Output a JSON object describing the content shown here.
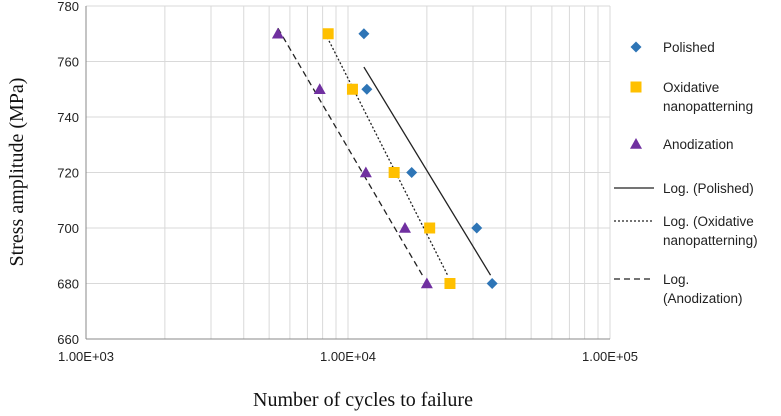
{
  "chart_data": {
    "type": "scatter",
    "title": "",
    "xlabel": "Number of cycles to failure",
    "ylabel": "Stress amplitude (MPa)",
    "x_scale": "log",
    "xlim": [
      1000,
      100000
    ],
    "ylim": [
      660,
      780
    ],
    "x_ticks": [
      1000,
      10000,
      100000
    ],
    "x_tick_labels": [
      "1.00E+03",
      "1.00E+04",
      "1.00E+05"
    ],
    "y_ticks": [
      660,
      680,
      700,
      720,
      740,
      760,
      780
    ],
    "y_tick_labels": [
      "660",
      "680",
      "700",
      "720",
      "740",
      "760",
      "780"
    ],
    "grid": true,
    "legend_position": "right",
    "series": [
      {
        "name": "Polished",
        "marker": "diamond",
        "color": "#2E75B6",
        "points": [
          {
            "x": 11500,
            "y": 770
          },
          {
            "x": 11800,
            "y": 750
          },
          {
            "x": 17500,
            "y": 720
          },
          {
            "x": 31000,
            "y": 700
          },
          {
            "x": 35500,
            "y": 680
          }
        ]
      },
      {
        "name": "Oxidative nanopatterning",
        "marker": "square",
        "color": "#FFC000",
        "points": [
          {
            "x": 8400,
            "y": 770
          },
          {
            "x": 10400,
            "y": 750
          },
          {
            "x": 15000,
            "y": 720
          },
          {
            "x": 20500,
            "y": 700
          },
          {
            "x": 24500,
            "y": 680
          }
        ]
      },
      {
        "name": "Anodization",
        "marker": "triangle",
        "color": "#7030A0",
        "points": [
          {
            "x": 5400,
            "y": 770
          },
          {
            "x": 7800,
            "y": 750
          },
          {
            "x": 11700,
            "y": 720
          },
          {
            "x": 16500,
            "y": 700
          },
          {
            "x": 20000,
            "y": 680
          }
        ]
      }
    ],
    "trendlines": [
      {
        "name": "Log. (Polished)",
        "dash": "solid",
        "from": {
          "x": 11500,
          "y": 758
        },
        "to": {
          "x": 35000,
          "y": 683
        }
      },
      {
        "name": "Log. (Oxidative nanopatterning)",
        "dash": "dotted",
        "from": {
          "x": 8200,
          "y": 770
        },
        "to": {
          "x": 24000,
          "y": 683
        }
      },
      {
        "name": "Log. (Anodization)",
        "dash": "dashed",
        "from": {
          "x": 5400,
          "y": 772
        },
        "to": {
          "x": 19500,
          "y": 682
        }
      }
    ],
    "legend": [
      {
        "kind": "marker",
        "series": 0,
        "label_lines": [
          "Polished"
        ]
      },
      {
        "kind": "marker",
        "series": 1,
        "label_lines": [
          "Oxidative",
          "nanopatterning"
        ]
      },
      {
        "kind": "marker",
        "series": 2,
        "label_lines": [
          "Anodization"
        ]
      },
      {
        "kind": "line",
        "trend": 0,
        "label_lines": [
          "Log. (Polished)"
        ]
      },
      {
        "kind": "line",
        "trend": 1,
        "label_lines": [
          "Log. (Oxidative",
          "nanopatterning)"
        ]
      },
      {
        "kind": "line",
        "trend": 2,
        "label_lines": [
          "Log.",
          "(Anodization)"
        ]
      }
    ]
  }
}
